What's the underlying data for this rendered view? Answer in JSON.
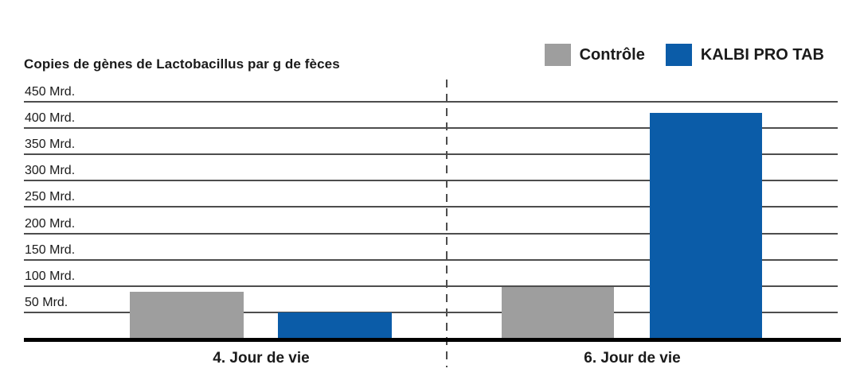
{
  "page": {
    "background": "#ffffff",
    "text_color": "#1a1a1a",
    "gridline_color": "#4d4d4d",
    "baseline_color": "#000000"
  },
  "legend": {
    "items": [
      {
        "label": "Contrôle",
        "color": "#9E9E9E"
      },
      {
        "label": "KALBI PRO TAB",
        "color": "#0B5CA8"
      }
    ]
  },
  "chart_data": {
    "type": "bar",
    "title": "Copies de gènes de Lactobacillus par g de fèces",
    "categories": [
      "4. Jour de vie",
      "6. Jour de vie"
    ],
    "series": [
      {
        "name": "Contrôle",
        "color": "#9E9E9E",
        "values": [
          90,
          100
        ]
      },
      {
        "name": "KALBI PRO TAB",
        "color": "#0B5CA8",
        "values": [
          52,
          430
        ]
      }
    ],
    "unit": "Mrd.",
    "ylim": [
      0,
      450
    ],
    "ytick_step": 50,
    "yticks": [
      {
        "value": 50,
        "label": "50 Mrd."
      },
      {
        "value": 100,
        "label": "100 Mrd."
      },
      {
        "value": 150,
        "label": "150 Mrd."
      },
      {
        "value": 200,
        "label": "200 Mrd."
      },
      {
        "value": 250,
        "label": "250 Mrd."
      },
      {
        "value": 300,
        "label": "300 Mrd."
      },
      {
        "value": 350,
        "label": "350 Mrd."
      },
      {
        "value": 400,
        "label": "400 Mrd."
      },
      {
        "value": 450,
        "label": "450 Mrd."
      }
    ],
    "grid": true,
    "legend_position": "top-right",
    "annotations": "dashed vertical line separates the two day groups"
  }
}
